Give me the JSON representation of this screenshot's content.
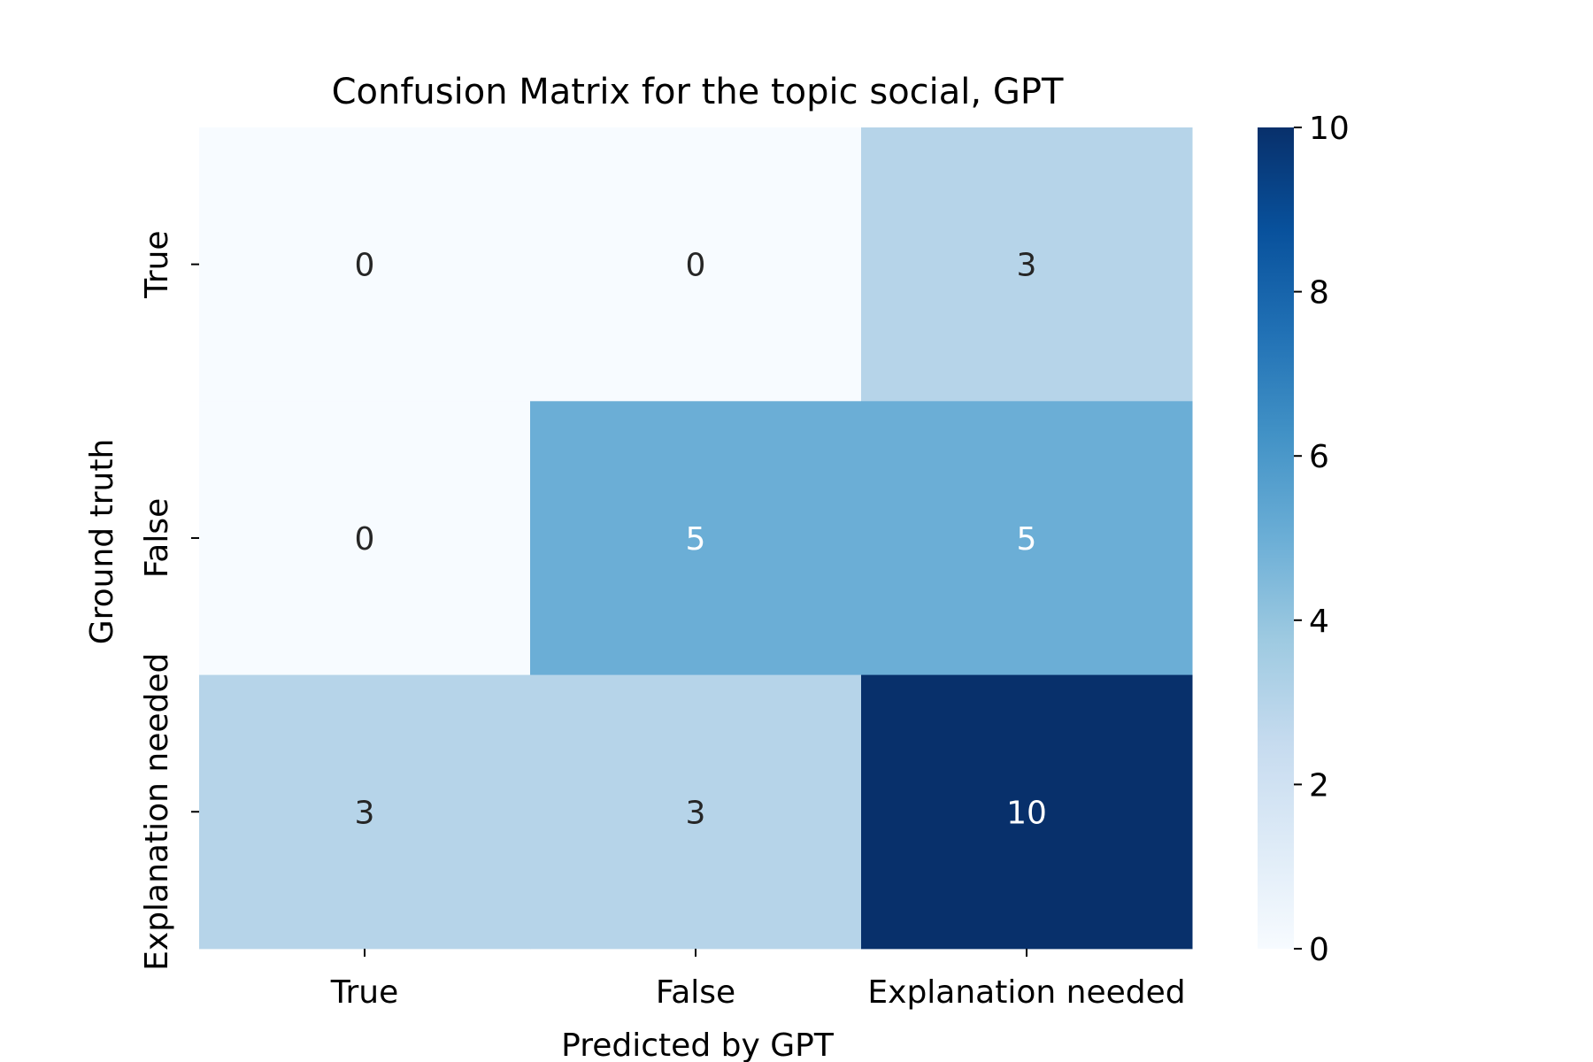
{
  "chart_data": {
    "type": "heatmap",
    "title": "Confusion Matrix for the topic social, GPT",
    "xlabel": "Predicted by GPT",
    "ylabel": "Ground truth",
    "x_categories": [
      "True",
      "False",
      "Explanation needed"
    ],
    "y_categories": [
      "True",
      "False",
      "Explanation needed"
    ],
    "values": [
      [
        0,
        0,
        3
      ],
      [
        0,
        5,
        5
      ],
      [
        3,
        3,
        10
      ]
    ],
    "colorbar": {
      "min": 0,
      "max": 10,
      "ticks": [
        "0",
        "2",
        "4",
        "6",
        "8",
        "10"
      ],
      "colormap": "Blues"
    }
  }
}
